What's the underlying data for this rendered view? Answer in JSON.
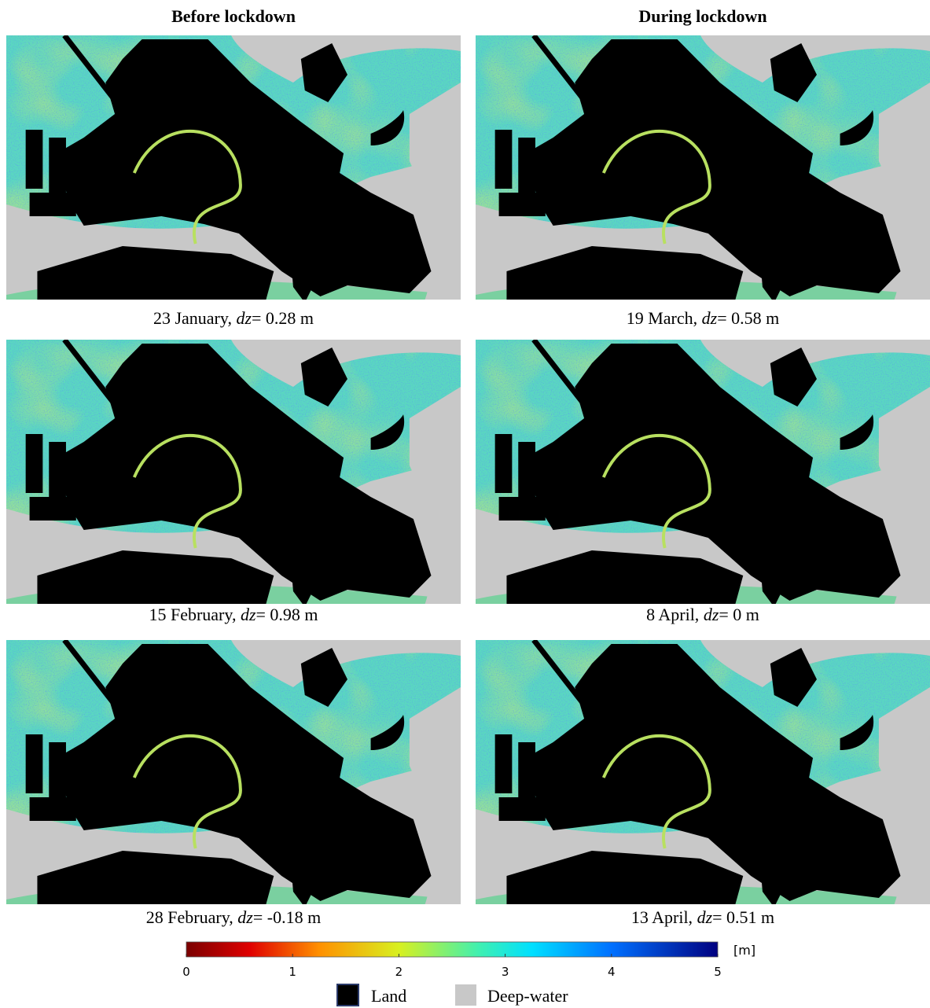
{
  "headers": [
    "Before lockdown",
    "During lockdown"
  ],
  "panels": [
    {
      "date": "23 January,",
      "symbol": "dz",
      "rest": "= 0.28 m"
    },
    {
      "date": "19 March,",
      "symbol": "dz",
      "rest": "= 0.58 m"
    },
    {
      "date": "15 February,",
      "symbol": "dz",
      "rest": "= 0.98 m"
    },
    {
      "date": "8 April,",
      "symbol": "dz",
      "rest": "= 0 m"
    },
    {
      "date": "28 February,",
      "symbol": "dz",
      "rest": "= -0.18 m"
    },
    {
      "date": "13 April,",
      "symbol": "dz",
      "rest": "= 0.51 m"
    }
  ],
  "colorbar": {
    "lim": [
      0,
      5
    ],
    "ticks": [
      0,
      1,
      2,
      3,
      4,
      5
    ],
    "unit": "[m]"
  },
  "legend": [
    "Land",
    "Deep-water"
  ]
}
